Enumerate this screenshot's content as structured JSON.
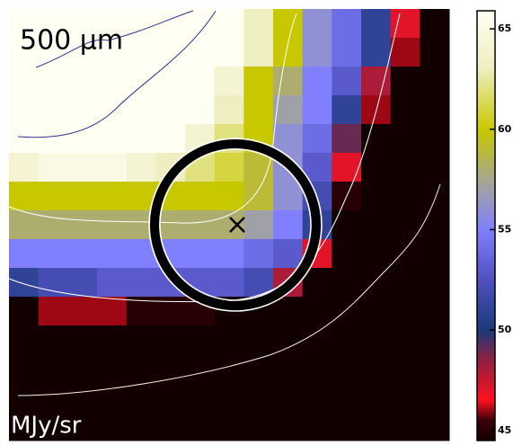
{
  "chart_data": {
    "type": "heatmap",
    "title": "500 μm",
    "unit_label": "MJy/sr",
    "z": [
      [
        66,
        66,
        66,
        66,
        66,
        66,
        66,
        66,
        63,
        60,
        56,
        54,
        51,
        47,
        44
      ],
      [
        66,
        66,
        66,
        66,
        66,
        66,
        66,
        66,
        63,
        60,
        56,
        54,
        51,
        46,
        44
      ],
      [
        66,
        66,
        66,
        66,
        66,
        66,
        66,
        64,
        60,
        58,
        55,
        53,
        48,
        44,
        44
      ],
      [
        66,
        66,
        66,
        66,
        66,
        66,
        66,
        63,
        60,
        57,
        55,
        51,
        46,
        44,
        44
      ],
      [
        66,
        66,
        66,
        66,
        66,
        66,
        64,
        62,
        60,
        56,
        54,
        49,
        44,
        44,
        44
      ],
      [
        64,
        65,
        65,
        65,
        64,
        63,
        62,
        61,
        59,
        56,
        53,
        47,
        44,
        44,
        44
      ],
      [
        60,
        60,
        60,
        60,
        60,
        60,
        60,
        60,
        59,
        56,
        52,
        45,
        44,
        44,
        44
      ],
      [
        58,
        58,
        58,
        58,
        58,
        58,
        58,
        58,
        57,
        55,
        51,
        44,
        44,
        44,
        44
      ],
      [
        55,
        55,
        55,
        55,
        55,
        55,
        55,
        55,
        54,
        53,
        47,
        44,
        44,
        44,
        44
      ],
      [
        51,
        52,
        52,
        53,
        53,
        53,
        53,
        53,
        52,
        48,
        44,
        44,
        44,
        44,
        44
      ],
      [
        44,
        46,
        46,
        46,
        45,
        45,
        45,
        44,
        44,
        44,
        44,
        44,
        44,
        44,
        44
      ],
      [
        44,
        44,
        44,
        44,
        44,
        44,
        44,
        44,
        44,
        44,
        44,
        44,
        44,
        44,
        44
      ],
      [
        44,
        44,
        44,
        44,
        44,
        44,
        44,
        44,
        44,
        44,
        44,
        44,
        44,
        44,
        44
      ],
      [
        44,
        44,
        44,
        44,
        44,
        44,
        44,
        44,
        44,
        44,
        44,
        44,
        44,
        44,
        44
      ],
      [
        44,
        44,
        44,
        44,
        44,
        44,
        44,
        44,
        44,
        44,
        44,
        44,
        44,
        44,
        44
      ]
    ],
    "colorscale": [
      [
        44.5,
        "#120000"
      ],
      [
        45.5,
        "#3a0008"
      ],
      [
        46.5,
        "#ff1020"
      ],
      [
        48.5,
        "#902040"
      ],
      [
        50,
        "#1a3a7a"
      ],
      [
        52.5,
        "#5050c0"
      ],
      [
        55,
        "#8080ff"
      ],
      [
        57,
        "#a0a0a8"
      ],
      [
        60,
        "#c8c800"
      ],
      [
        63,
        "#eeeec0"
      ],
      [
        65.9,
        "#fffff4"
      ]
    ],
    "clim": [
      44.5,
      65.9
    ],
    "cticks": [
      45,
      50,
      55,
      60,
      65
    ]
  }
}
